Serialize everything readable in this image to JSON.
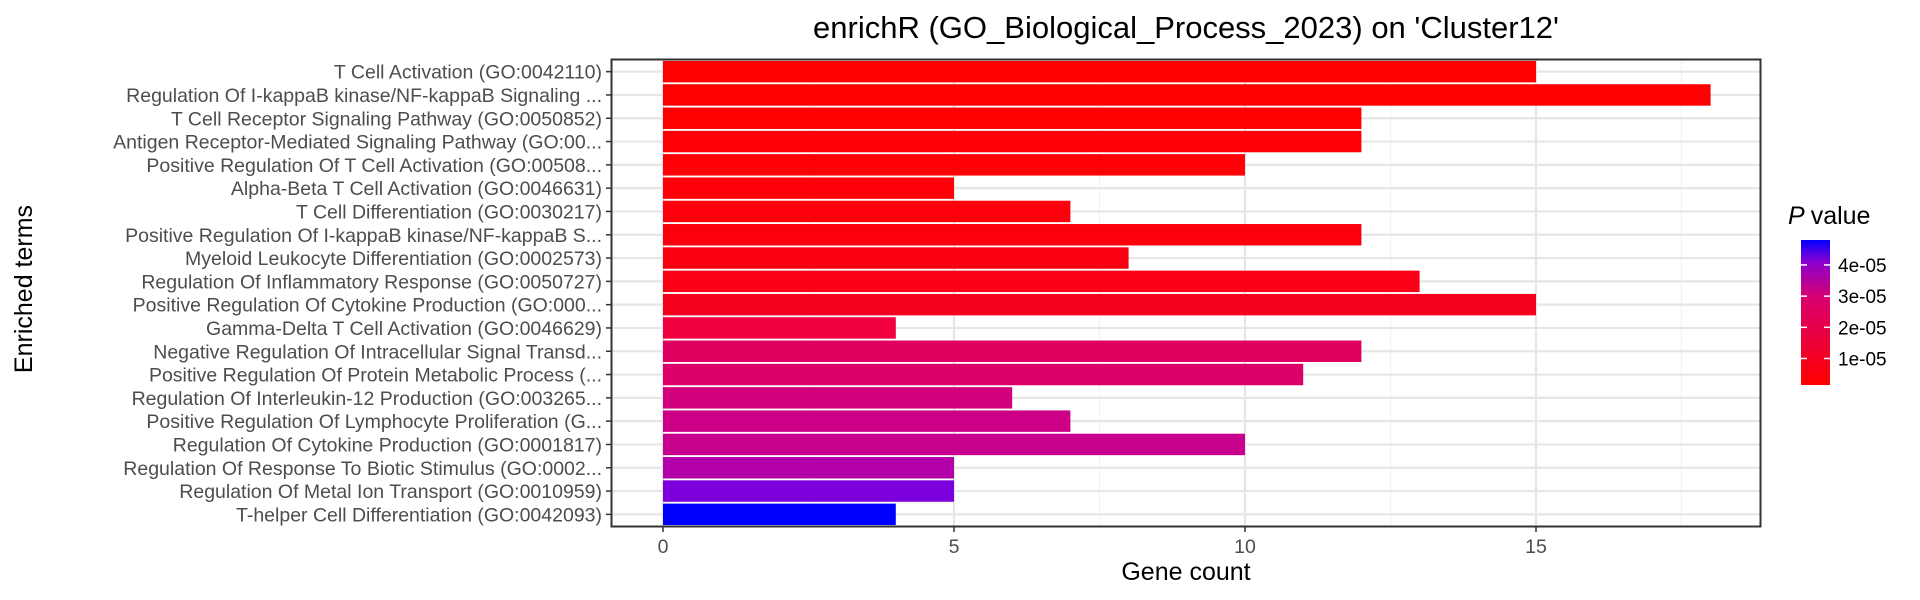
{
  "chart_data": {
    "type": "bar",
    "orientation": "horizontal",
    "title": "enrichR (GO_Biological_Process_2023) on 'Cluster12'",
    "xlabel": "Gene count",
    "ylabel": "Enriched terms",
    "xlim": [
      0,
      18.9
    ],
    "x_ticks": [
      0,
      5,
      10,
      15
    ],
    "grid": true,
    "legend": {
      "title": "P value",
      "position": "right",
      "type": "colorbar",
      "colors": {
        "low": "#ff0000",
        "high": "#0000ff"
      },
      "range": [
        1.5e-06,
        4.8e-05
      ],
      "ticks": [
        {
          "value": 1e-05,
          "label": "1e-05"
        },
        {
          "value": 2e-05,
          "label": "2e-05"
        },
        {
          "value": 3e-05,
          "label": "3e-05"
        },
        {
          "value": 4e-05,
          "label": "4e-05"
        }
      ]
    },
    "bars": [
      {
        "term": "T Cell Activation (GO:0042110)",
        "count": 15,
        "p_value": 1.5e-06,
        "color": "#ff0000"
      },
      {
        "term": "Regulation Of I-kappaB kinase/NF-kappaB Signaling ...",
        "count": 18,
        "p_value": 1.8e-06,
        "color": "#ff0001"
      },
      {
        "term": "T Cell Receptor Signaling Pathway (GO:0050852)",
        "count": 12,
        "p_value": 2e-06,
        "color": "#ff0002"
      },
      {
        "term": "Antigen Receptor-Mediated Signaling Pathway (GO:00...",
        "count": 12,
        "p_value": 2.5e-06,
        "color": "#ff0004"
      },
      {
        "term": "Positive Regulation Of T Cell Activation (GO:00508...",
        "count": 10,
        "p_value": 3e-06,
        "color": "#ff0007"
      },
      {
        "term": "Alpha-Beta T Cell Activation (GO:0046631)",
        "count": 5,
        "p_value": 4e-06,
        "color": "#fe000a"
      },
      {
        "term": "T Cell Differentiation (GO:0030217)",
        "count": 7,
        "p_value": 4.5e-06,
        "color": "#fd000c"
      },
      {
        "term": "Positive Regulation Of I-kappaB kinase/NF-kappaB S...",
        "count": 12,
        "p_value": 5e-06,
        "color": "#fc000e"
      },
      {
        "term": "Myeloid Leukocyte Differentiation (GO:0002573)",
        "count": 8,
        "p_value": 5.5e-06,
        "color": "#fb0010"
      },
      {
        "term": "Regulation Of Inflammatory Response (GO:0050727)",
        "count": 13,
        "p_value": 6.5e-06,
        "color": "#f90016"
      },
      {
        "term": "Positive Regulation Of Cytokine Production (GO:000...",
        "count": 15,
        "p_value": 8e-06,
        "color": "#f6001f"
      },
      {
        "term": "Gamma-Delta T Cell Activation (GO:0046629)",
        "count": 4,
        "p_value": 1.1e-05,
        "color": "#f0003e"
      },
      {
        "term": "Negative Regulation Of Intracellular Signal Transd...",
        "count": 12,
        "p_value": 1.9e-05,
        "color": "#e00060"
      },
      {
        "term": "Positive Regulation Of Protein Metabolic Process (...",
        "count": 11,
        "p_value": 2.1e-05,
        "color": "#dc0068"
      },
      {
        "term": "Regulation Of Interleukin-12 Production (GO:003265...",
        "count": 6,
        "p_value": 2.5e-05,
        "color": "#d2007c"
      },
      {
        "term": "Positive Regulation Of Lymphocyte Proliferation (G...",
        "count": 7,
        "p_value": 2.7e-05,
        "color": "#cc0086"
      },
      {
        "term": "Regulation Of Cytokine Production (GO:0001817)",
        "count": 10,
        "p_value": 2.8e-05,
        "color": "#c8008e"
      },
      {
        "term": "Regulation Of Response To Biotic Stimulus (GO:0002...",
        "count": 5,
        "p_value": 3.3e-05,
        "color": "#b300a8"
      },
      {
        "term": "Regulation Of Metal Ion Transport (GO:0010959)",
        "count": 5,
        "p_value": 4.1e-05,
        "color": "#7c00db"
      },
      {
        "term": "T-helper Cell Differentiation (GO:0042093)",
        "count": 4,
        "p_value": 4.8e-05,
        "color": "#0000ff"
      }
    ]
  }
}
